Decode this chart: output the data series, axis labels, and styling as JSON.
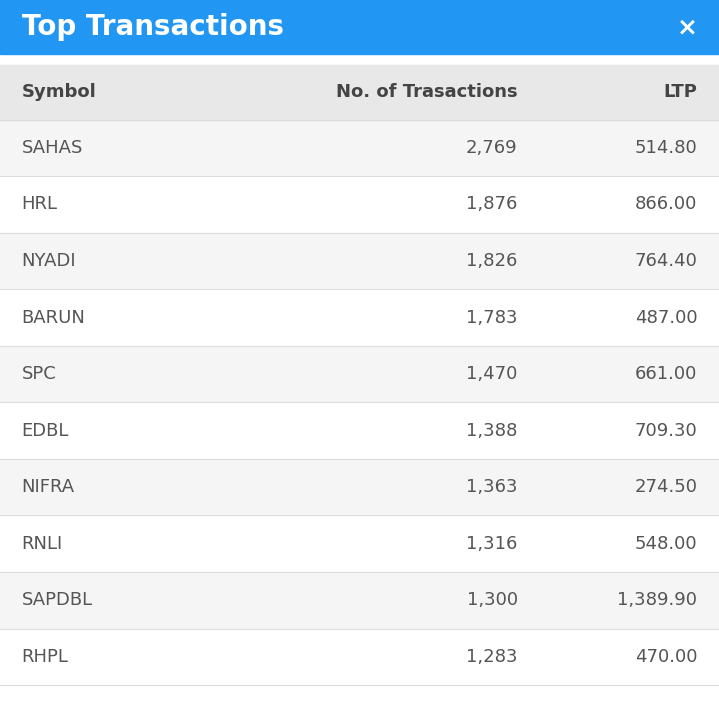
{
  "title": "Top Transactions",
  "close_symbol": "×",
  "header_bg": "#2196F3",
  "header_text_color": "#ffffff",
  "title_fontsize": 20,
  "col_headers": [
    "Symbol",
    "No. of Trasactions",
    "LTP"
  ],
  "col_header_fontsize": 13,
  "col_header_bg": "#e8e8e8",
  "col_header_text_color": "#444444",
  "rows": [
    {
      "symbol": "SAHAS",
      "transactions": "2,769",
      "ltp": "514.80"
    },
    {
      "symbol": "HRL",
      "transactions": "1,876",
      "ltp": "866.00"
    },
    {
      "symbol": "NYADI",
      "transactions": "1,826",
      "ltp": "764.40"
    },
    {
      "symbol": "BARUN",
      "transactions": "1,783",
      "ltp": "487.00"
    },
    {
      "symbol": "SPC",
      "transactions": "1,470",
      "ltp": "661.00"
    },
    {
      "symbol": "EDBL",
      "transactions": "1,388",
      "ltp": "709.30"
    },
    {
      "symbol": "NIFRA",
      "transactions": "1,363",
      "ltp": "274.50"
    },
    {
      "symbol": "RNLI",
      "transactions": "1,316",
      "ltp": "548.00"
    },
    {
      "symbol": "SAPDBL",
      "transactions": "1,300",
      "ltp": "1,389.90"
    },
    {
      "symbol": "RHPL",
      "transactions": "1,283",
      "ltp": "470.00"
    }
  ],
  "row_bg_odd": "#f5f5f5",
  "row_bg_even": "#ffffff",
  "row_text_color": "#555555",
  "row_fontsize": 13,
  "divider_color": "#dddddd",
  "outer_bg": "#ffffff"
}
